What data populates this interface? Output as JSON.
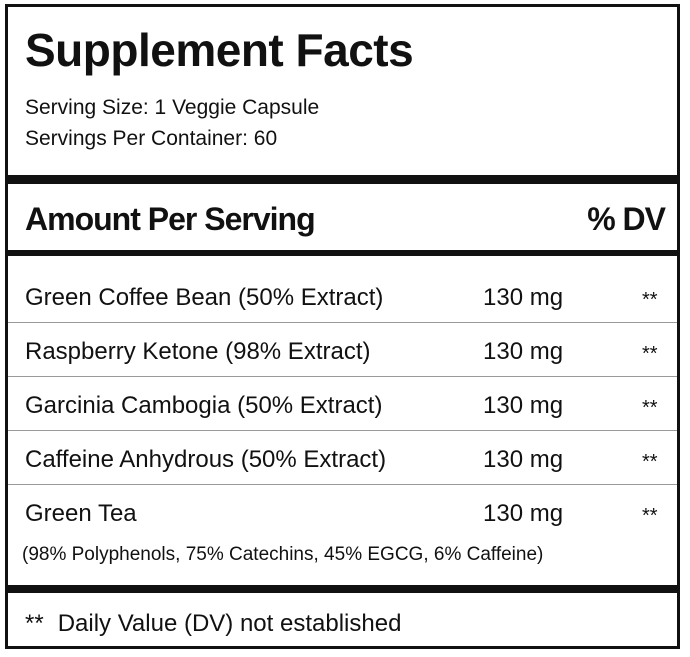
{
  "title": "Supplement Facts",
  "serving_size": "Serving Size: 1 Veggie Capsule",
  "servings_per_container": "Servings Per Container: 60",
  "header": {
    "amount": "Amount Per Serving",
    "dv": "% DV"
  },
  "ingredients": [
    {
      "name": "Green Coffee Bean (50% Extract)",
      "amount": "130 mg",
      "dv": "**"
    },
    {
      "name": "Raspberry Ketone (98% Extract)",
      "amount": "130 mg",
      "dv": "**"
    },
    {
      "name": "Garcinia Cambogia (50% Extract)",
      "amount": "130 mg",
      "dv": "**"
    },
    {
      "name": "Caffeine Anhydrous (50% Extract)",
      "amount": "130 mg",
      "dv": "**"
    },
    {
      "name": "Green Tea",
      "amount": "130 mg",
      "dv": "**"
    }
  ],
  "green_tea_detail": "(98% Polyphenols, 75% Catechins, 45% EGCG, 6% Caffeine)",
  "footnote": {
    "mark": "**",
    "text": "Daily Value (DV) not established"
  }
}
